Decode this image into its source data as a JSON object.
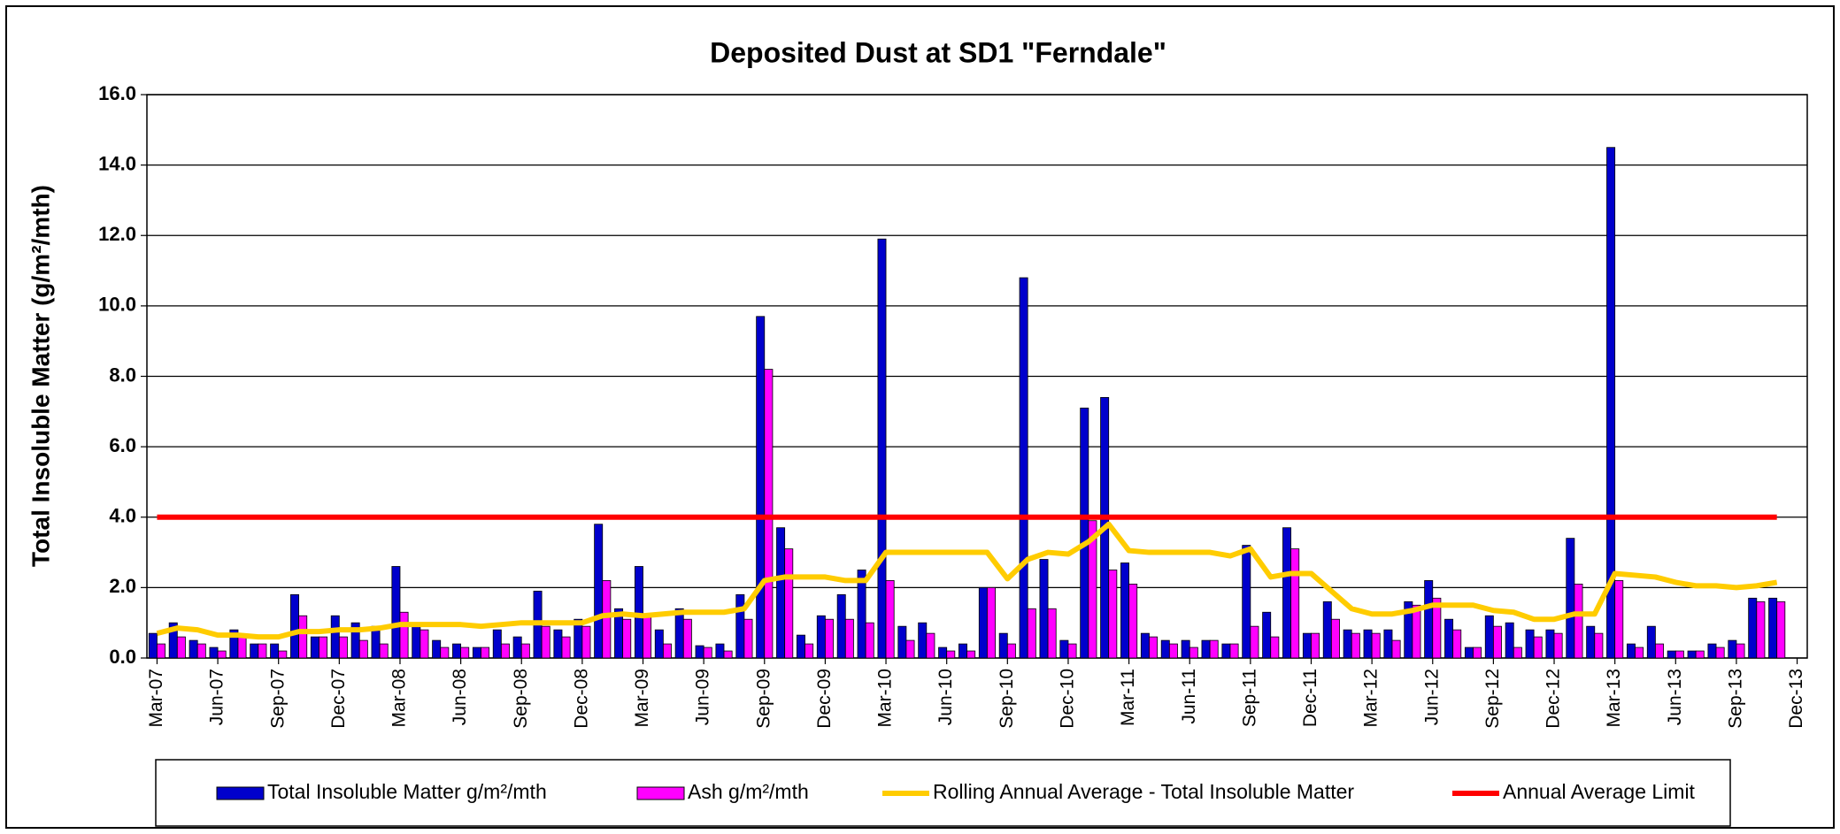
{
  "chart_data": {
    "type": "bar",
    "title": "Deposited Dust at SD1 \"Ferndale\"",
    "y_label": "Total Insoluble Matter  (g/m²/mth)",
    "categories": [
      "Mar-07",
      null,
      null,
      "Jun-07",
      null,
      null,
      "Sep-07",
      null,
      null,
      "Dec-07",
      null,
      null,
      "Mar-08",
      null,
      null,
      "Jun-08",
      null,
      null,
      "Sep-08",
      null,
      null,
      "Dec-08",
      null,
      null,
      "Mar-09",
      null,
      null,
      "Jun-09",
      null,
      null,
      "Sep-09",
      null,
      null,
      "Dec-09",
      null,
      null,
      "Mar-10",
      null,
      null,
      "Jun-10",
      null,
      null,
      "Sep-10",
      null,
      null,
      "Dec-10",
      null,
      null,
      "Mar-11",
      null,
      null,
      "Jun-11",
      null,
      null,
      "Sep-11",
      null,
      null,
      "Dec-11",
      null,
      null,
      "Mar-12",
      null,
      null,
      "Jun-12",
      null,
      null,
      "Sep-12",
      null,
      null,
      "Dec-12",
      null,
      null,
      "Mar-13",
      null,
      null,
      "Jun-13",
      null,
      null,
      "Sep-13",
      null,
      null,
      "Dec-13"
    ],
    "series": [
      {
        "name": "Total Insoluble Matter  g/m²/mth",
        "type": "bar",
        "color": "#0000cc",
        "values": [
          0.7,
          1.0,
          0.5,
          0.3,
          0.8,
          0.4,
          0.4,
          1.8,
          0.6,
          1.2,
          1.0,
          0.9,
          2.6,
          0.9,
          0.5,
          0.4,
          0.3,
          0.8,
          0.6,
          1.9,
          0.8,
          1.1,
          3.8,
          1.4,
          2.6,
          0.8,
          1.4,
          0.35,
          0.4,
          1.8,
          9.7,
          3.7,
          0.65,
          1.2,
          1.8,
          2.5,
          11.9,
          0.9,
          1.0,
          0.3,
          0.4,
          2.0,
          0.7,
          10.8,
          2.8,
          0.5,
          7.1,
          7.4,
          2.7,
          0.7,
          0.5,
          0.5,
          0.5,
          0.4,
          3.2,
          1.3,
          3.7,
          0.7,
          1.6,
          0.8,
          0.8,
          0.8,
          1.6,
          2.2,
          1.1,
          0.3,
          1.2,
          1.0,
          0.8,
          0.8,
          3.4,
          0.9,
          14.5,
          0.4,
          0.9,
          0.2,
          0.2,
          0.4,
          0.5,
          1.7,
          1.7,
          null
        ]
      },
      {
        "name": "Ash  g/m²/mth",
        "type": "bar",
        "color": "#ff00ff",
        "values": [
          0.4,
          0.6,
          0.4,
          0.2,
          0.6,
          0.4,
          0.2,
          1.2,
          0.6,
          0.6,
          0.5,
          0.4,
          1.3,
          0.8,
          0.3,
          0.3,
          0.3,
          0.4,
          0.4,
          0.9,
          0.6,
          0.9,
          2.2,
          1.1,
          1.2,
          0.4,
          1.1,
          0.3,
          0.2,
          1.1,
          8.2,
          3.1,
          0.4,
          1.1,
          1.1,
          1.0,
          2.2,
          0.5,
          0.7,
          0.2,
          0.2,
          2.0,
          0.4,
          1.4,
          1.4,
          0.4,
          3.9,
          2.5,
          2.1,
          0.6,
          0.4,
          0.3,
          0.5,
          0.4,
          0.9,
          0.6,
          3.1,
          0.7,
          1.1,
          0.7,
          0.7,
          0.5,
          1.5,
          1.7,
          0.8,
          0.3,
          0.9,
          0.3,
          0.6,
          0.7,
          2.1,
          0.7,
          2.2,
          0.3,
          0.4,
          0.2,
          0.2,
          0.3,
          0.4,
          1.6,
          1.6,
          null
        ]
      },
      {
        "name": "Rolling Annual Average - Total Insoluble Matter",
        "type": "line",
        "color": "#ffcc00",
        "values": [
          0.7,
          0.85,
          0.8,
          0.65,
          0.65,
          0.6,
          0.6,
          0.75,
          0.75,
          0.8,
          0.8,
          0.85,
          0.95,
          0.95,
          0.95,
          0.95,
          0.9,
          0.95,
          1.0,
          1.0,
          1.0,
          1.0,
          1.2,
          1.25,
          1.2,
          1.25,
          1.3,
          1.3,
          1.3,
          1.4,
          2.2,
          2.3,
          2.3,
          2.3,
          2.2,
          2.2,
          3.0,
          3.0,
          3.0,
          3.0,
          3.0,
          3.0,
          2.25,
          2.8,
          3.0,
          2.95,
          3.3,
          3.8,
          3.05,
          3.0,
          3.0,
          3.0,
          3.0,
          2.9,
          3.1,
          2.3,
          2.4,
          2.4,
          1.9,
          1.4,
          1.25,
          1.25,
          1.35,
          1.5,
          1.5,
          1.5,
          1.35,
          1.3,
          1.1,
          1.1,
          1.25,
          1.25,
          2.4,
          2.35,
          2.3,
          2.15,
          2.05,
          2.05,
          2.0,
          2.05,
          2.15,
          null
        ]
      },
      {
        "name": "Annual Average Limit",
        "type": "line",
        "color": "#ff0000",
        "values": [
          4,
          4,
          4,
          4,
          4,
          4,
          4,
          4,
          4,
          4,
          4,
          4,
          4,
          4,
          4,
          4,
          4,
          4,
          4,
          4,
          4,
          4,
          4,
          4,
          4,
          4,
          4,
          4,
          4,
          4,
          4,
          4,
          4,
          4,
          4,
          4,
          4,
          4,
          4,
          4,
          4,
          4,
          4,
          4,
          4,
          4,
          4,
          4,
          4,
          4,
          4,
          4,
          4,
          4,
          4,
          4,
          4,
          4,
          4,
          4,
          4,
          4,
          4,
          4,
          4,
          4,
          4,
          4,
          4,
          4,
          4,
          4,
          4,
          4,
          4,
          4,
          4,
          4,
          4,
          4,
          4,
          null
        ]
      }
    ],
    "ylim": [
      0,
      16
    ],
    "yticks": [
      {
        "value": 0,
        "label": "0.0"
      },
      {
        "value": 2,
        "label": "2.0"
      },
      {
        "value": 4,
        "label": "4.0"
      },
      {
        "value": 6,
        "label": "6.0"
      },
      {
        "value": 8,
        "label": "8.0"
      },
      {
        "value": 10,
        "label": "10.0"
      },
      {
        "value": 12,
        "label": "12.0"
      },
      {
        "value": 14,
        "label": "14.0"
      },
      {
        "value": 16,
        "label": "16.0"
      }
    ],
    "grid": true,
    "legend": "bottom"
  }
}
